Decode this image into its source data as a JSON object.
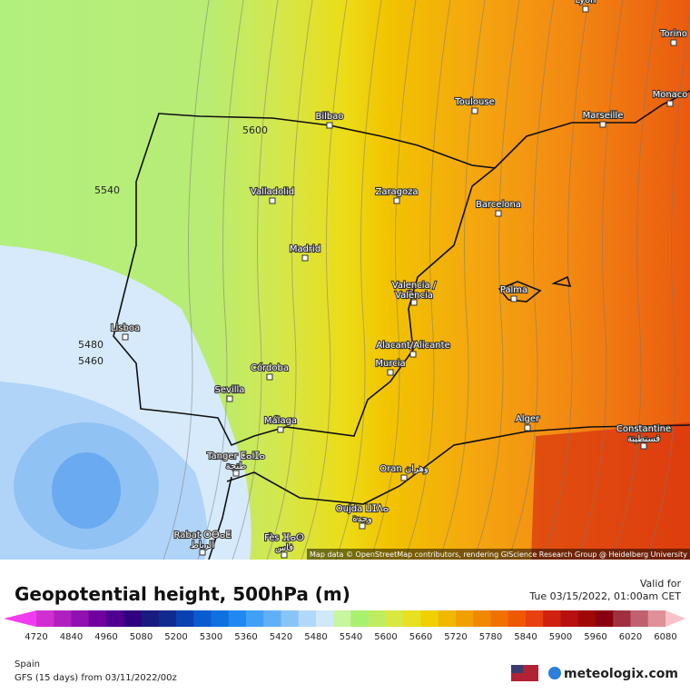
{
  "map": {
    "cities": [
      {
        "label": "Lyon"
      },
      {
        "label": "Torino"
      },
      {
        "label": "Monaco"
      },
      {
        "label": "Toulouse"
      },
      {
        "label": "Marseille"
      },
      {
        "label": "Bilbao"
      },
      {
        "label": "Valladolid"
      },
      {
        "label": "Zaragoza"
      },
      {
        "label": "Barcelona"
      },
      {
        "label": "Madrid"
      },
      {
        "label": "Valencia /",
        "sub": "València"
      },
      {
        "label": "Palma"
      },
      {
        "label": "Lisboa"
      },
      {
        "label": "Alacant/Alicante"
      },
      {
        "label": "Murcia"
      },
      {
        "label": "Córdoba"
      },
      {
        "label": "Sevilla"
      },
      {
        "label": "Alger"
      },
      {
        "label": "Constantine",
        "sub": "قسنطينة"
      },
      {
        "label": "Málaga"
      },
      {
        "label": "Tanger ⵟⴰⵏⵊⴰ",
        "sub": "طنجة"
      },
      {
        "label": "Oran وهران"
      },
      {
        "label": "Oujda ⵡⵊⴷⴰ",
        "sub": "وجدة"
      },
      {
        "label": "Rabat ⵔⴱⴰⵟ",
        "sub": "الرباط"
      },
      {
        "label": "Fès ⴼⴰⵙ",
        "sub": "فاس"
      }
    ],
    "contour_labels": [
      "5600",
      "5540",
      "5480",
      "5460"
    ],
    "attribution": "Map data © OpenStreetMap contributors, rendering GIScience Research Group @ Heidelberg University"
  },
  "footer": {
    "title": "Geopotential height, 500hPa (m)",
    "valid_label": "Valid for",
    "valid_time": "Tue 03/15/2022, 01:00am CET",
    "region": "Spain",
    "model": "GFS (15 days) from 03/11/2022/00z",
    "brand": "meteologix.com"
  },
  "legend": {
    "ticks": [
      4720,
      4840,
      4960,
      5080,
      5200,
      5300,
      5360,
      5420,
      5480,
      5540,
      5600,
      5660,
      5720,
      5780,
      5840,
      5900,
      5960,
      6020,
      6080
    ],
    "low_color": "#f03cf0",
    "high_color": "#f8c0c8",
    "colors": [
      "#d030d0",
      "#b020c0",
      "#9010b0",
      "#7000a0",
      "#500090",
      "#300080",
      "#1a1a80",
      "#102a90",
      "#0a40b0",
      "#0a5ad0",
      "#1070e0",
      "#2088f0",
      "#40a0f5",
      "#60b0f5",
      "#88c4f5",
      "#b0d8f8",
      "#d0e8fa",
      "#c8f5a0",
      "#a8f070",
      "#c0ec60",
      "#d8e840",
      "#e8e020",
      "#f0d000",
      "#f0b800",
      "#f0a000",
      "#f08800",
      "#f07000",
      "#f05800",
      "#e84010",
      "#d02010",
      "#b81010",
      "#a00808",
      "#880010",
      "#a03040",
      "#c06070",
      "#e09098"
    ]
  }
}
